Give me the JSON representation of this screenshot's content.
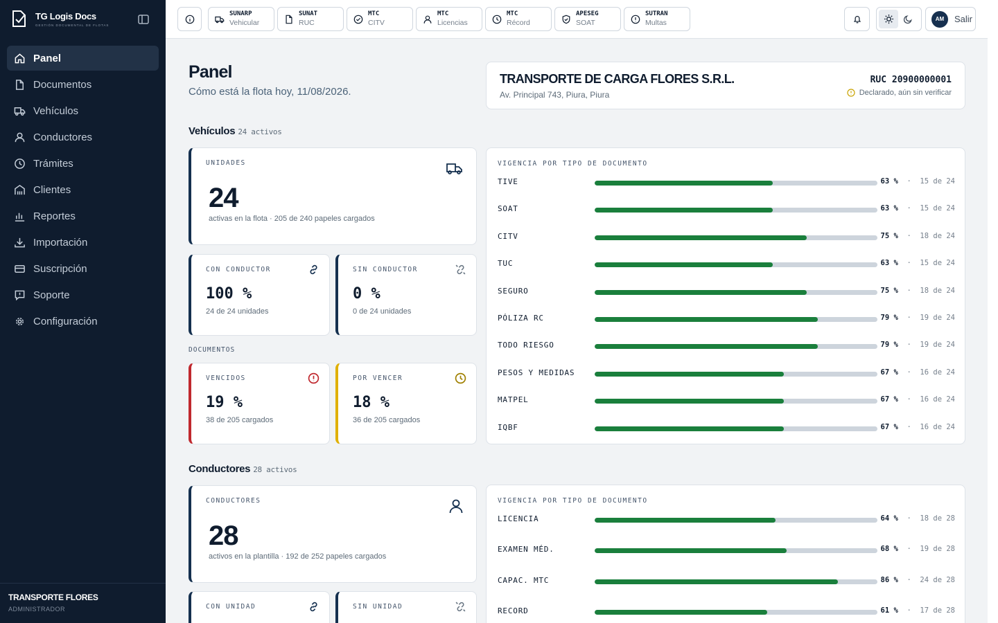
{
  "brand": {
    "name": "TG Logis Docs",
    "subtitle": "GESTIÓN DOCUMENTAL DE FLOTAS"
  },
  "sidebar": {
    "items": [
      {
        "label": "Panel",
        "icon": "home-icon",
        "active": true
      },
      {
        "label": "Documentos",
        "icon": "file-icon"
      },
      {
        "label": "Vehículos",
        "icon": "truck-icon"
      },
      {
        "label": "Conductores",
        "icon": "user-icon"
      },
      {
        "label": "Trámites",
        "icon": "clock-icon"
      },
      {
        "label": "Clientes",
        "icon": "building-icon"
      },
      {
        "label": "Reportes",
        "icon": "bar-chart-icon"
      },
      {
        "label": "Importación",
        "icon": "download-icon"
      },
      {
        "label": "Suscripción",
        "icon": "credit-card-icon"
      },
      {
        "label": "Soporte",
        "icon": "message-alert-icon"
      },
      {
        "label": "Configuración",
        "icon": "gear-icon"
      }
    ],
    "footer": {
      "company": "TRANSPORTE FLORES",
      "role": "ADMINISTRADOR"
    }
  },
  "topbar": {
    "quick_links": [
      {
        "title": "SUNARP",
        "sub": "Vehicular",
        "icon": "truck-icon"
      },
      {
        "title": "SUNAT",
        "sub": "RUC",
        "icon": "file-icon"
      },
      {
        "title": "MTC",
        "sub": "CITV",
        "icon": "check-circle-icon"
      },
      {
        "title": "MTC",
        "sub": "Licencias",
        "icon": "user-icon"
      },
      {
        "title": "MTC",
        "sub": "Récord",
        "icon": "clock-icon"
      },
      {
        "title": "APESEG",
        "sub": "SOAT",
        "icon": "shield-check-icon"
      },
      {
        "title": "SUTRAN",
        "sub": "Multas",
        "icon": "alert-circle-icon"
      }
    ],
    "avatar_initials": "AM",
    "logout_label": "Salir"
  },
  "header": {
    "title": "Panel",
    "subtitle": "Cómo está la flota hoy, 11/08/2026."
  },
  "company": {
    "name": "TRANSPORTE DE CARGA FLORES S.R.L.",
    "address": "Av. Principal 743, Piura, Piura",
    "ruc": "RUC 20900000001",
    "status": "Declarado, aún sin verificar"
  },
  "vehicles": {
    "section_title": "Vehículos",
    "count_label": "24 activos",
    "units": {
      "label": "UNIDADES",
      "value": "24",
      "foot": "activas en la flota · 205 de 240 papeles cargados"
    },
    "with_driver": {
      "label": "CON CONDUCTOR",
      "value": "100 %",
      "foot": "24 de 24 unidades"
    },
    "without_driver": {
      "label": "SIN CONDUCTOR",
      "value": "0 %",
      "foot": "0 de 24 unidades"
    },
    "documents_label": "DOCUMENTOS",
    "expired": {
      "label": "VENCIDOS",
      "value": "19 %",
      "foot": "38 de 205 cargados"
    },
    "expiring": {
      "label": "POR VENCER",
      "value": "18 %",
      "foot": "36 de 205 cargados"
    },
    "vigencia_title": "VIGENCIA POR TIPO DE DOCUMENTO",
    "vigencia": [
      {
        "name": "TIVE",
        "pct": 63,
        "pct_label": "63 %",
        "count": "15 de 24"
      },
      {
        "name": "SOAT",
        "pct": 63,
        "pct_label": "63 %",
        "count": "15 de 24"
      },
      {
        "name": "CITV",
        "pct": 75,
        "pct_label": "75 %",
        "count": "18 de 24"
      },
      {
        "name": "TUC",
        "pct": 63,
        "pct_label": "63 %",
        "count": "15 de 24"
      },
      {
        "name": "SEGURO",
        "pct": 75,
        "pct_label": "75 %",
        "count": "18 de 24"
      },
      {
        "name": "PÓLIZA RC",
        "pct": 79,
        "pct_label": "79 %",
        "count": "19 de 24"
      },
      {
        "name": "TODO RIESGO",
        "pct": 79,
        "pct_label": "79 %",
        "count": "19 de 24"
      },
      {
        "name": "PESOS Y MEDIDAS",
        "pct": 67,
        "pct_label": "67 %",
        "count": "16 de 24"
      },
      {
        "name": "MATPEL",
        "pct": 67,
        "pct_label": "67 %",
        "count": "16 de 24"
      },
      {
        "name": "IQBF",
        "pct": 67,
        "pct_label": "67 %",
        "count": "16 de 24"
      }
    ]
  },
  "drivers": {
    "section_title": "Conductores",
    "count_label": "28 activos",
    "total": {
      "label": "CONDUCTORES",
      "value": "28",
      "foot": "activos en la plantilla · 192 de 252 papeles cargados"
    },
    "with_unit": {
      "label": "CON UNIDAD"
    },
    "without_unit": {
      "label": "SIN UNIDAD"
    },
    "vigencia_title": "VIGENCIA POR TIPO DE DOCUMENTO",
    "vigencia": [
      {
        "name": "LICENCIA",
        "pct": 64,
        "pct_label": "64 %",
        "count": "18 de 28"
      },
      {
        "name": "EXAMEN MÉD.",
        "pct": 68,
        "pct_label": "68 %",
        "count": "19 de 28"
      },
      {
        "name": "CAPAC. MTC",
        "pct": 86,
        "pct_label": "86 %",
        "count": "24 de 28"
      },
      {
        "name": "RECORD",
        "pct": 61,
        "pct_label": "61 %",
        "count": "17 de 28"
      }
    ]
  },
  "colors": {
    "sidebar_bg": "#0f1c2e",
    "accent_green": "#1a7f3c",
    "danger": "#c0282e",
    "warning": "#e0b000",
    "navy": "#15304f"
  }
}
